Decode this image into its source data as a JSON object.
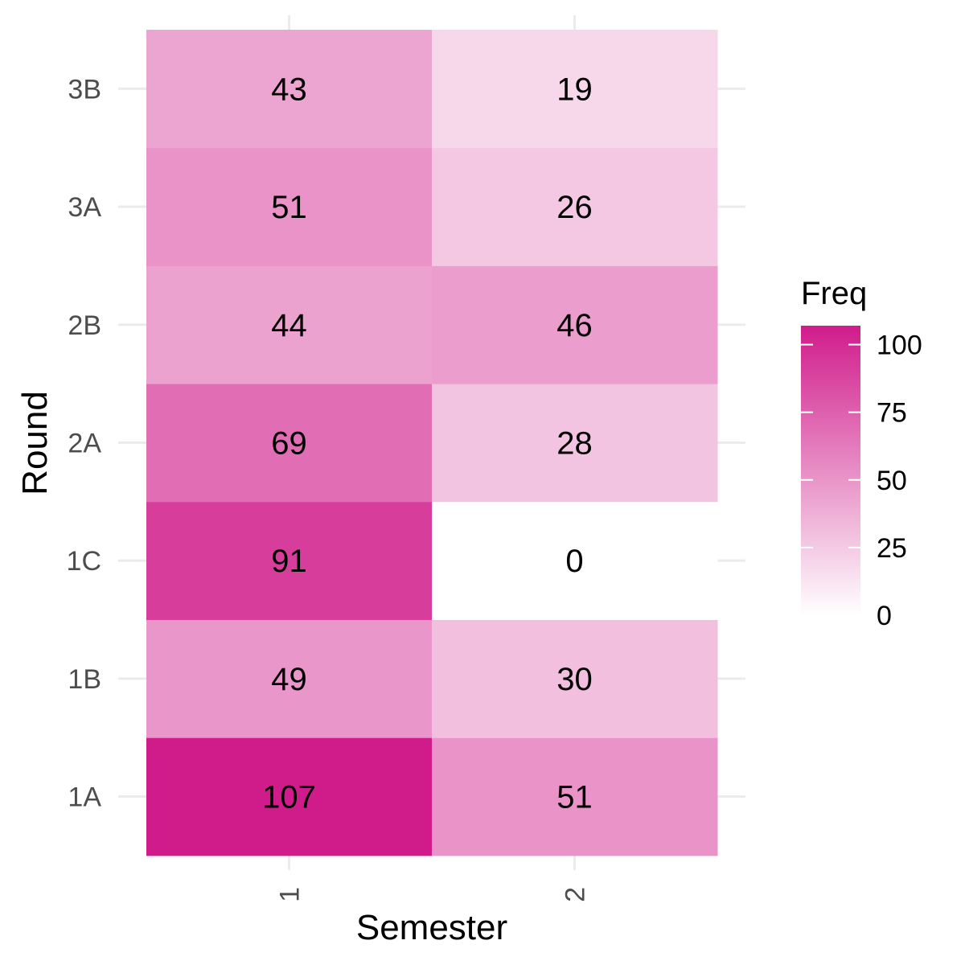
{
  "chart_data": {
    "type": "heatmap",
    "x": [
      "1",
      "2"
    ],
    "y": [
      "1A",
      "1B",
      "1C",
      "2A",
      "2B",
      "3A",
      "3B"
    ],
    "values": [
      [
        107,
        51
      ],
      [
        49,
        30
      ],
      [
        91,
        0
      ],
      [
        69,
        28
      ],
      [
        44,
        46
      ],
      [
        51,
        26
      ],
      [
        43,
        19
      ]
    ],
    "xlabel": "Semester",
    "ylabel": "Round",
    "legend": {
      "title": "Freq",
      "ticks": [
        "0",
        "25",
        "50",
        "75",
        "100"
      ],
      "range": [
        0,
        107
      ],
      "placement": "right"
    },
    "colors": {
      "low": "#ffffff",
      "high": "#d01c8b",
      "grid": "#ebebeb"
    },
    "grid": true
  }
}
